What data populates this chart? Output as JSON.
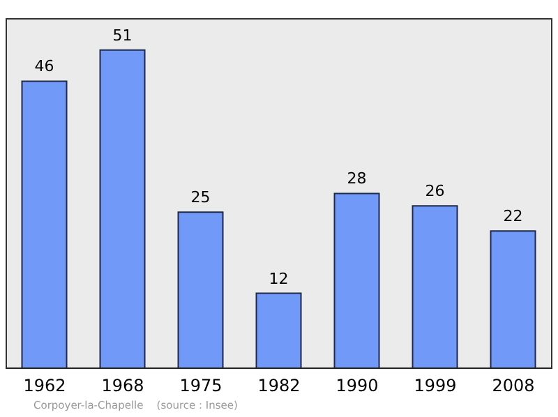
{
  "chart_data": {
    "type": "bar",
    "categories": [
      "1962",
      "1968",
      "1975",
      "1982",
      "1990",
      "1999",
      "2008"
    ],
    "values": [
      46,
      51,
      25,
      12,
      28,
      26,
      22
    ],
    "color": "#7099f8",
    "data_labels": true,
    "annotations": [
      "Corpoyer-la-Chapelle    (source : Insee)"
    ]
  }
}
